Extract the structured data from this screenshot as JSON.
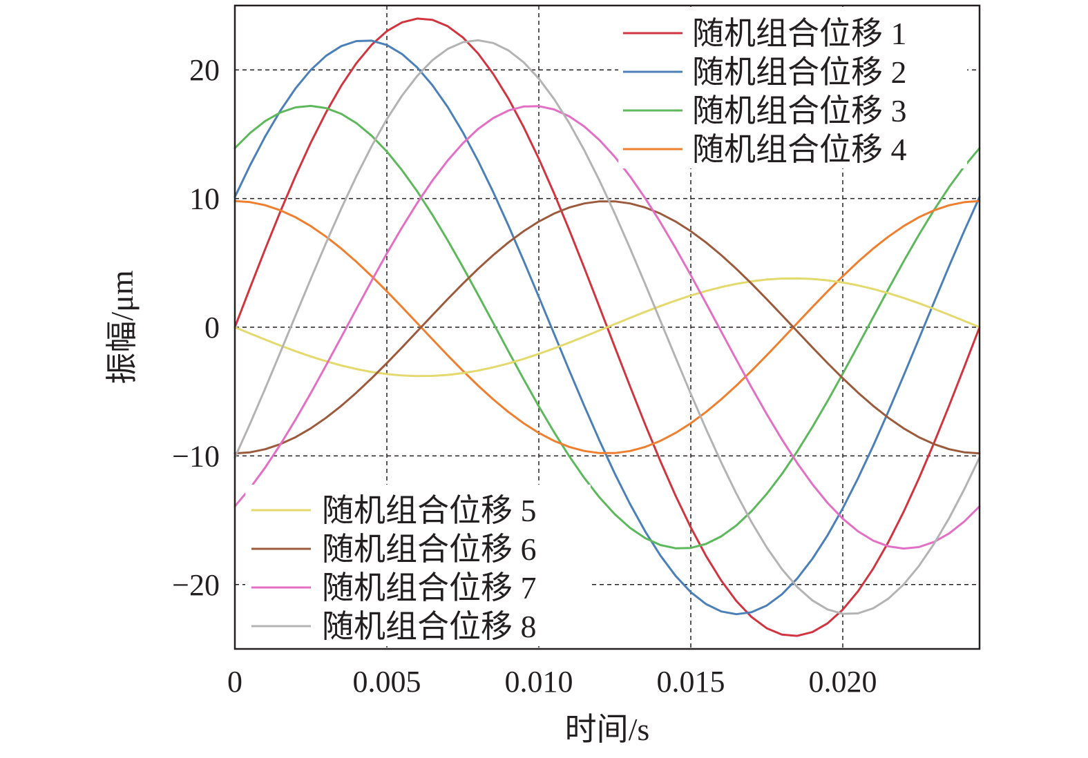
{
  "chart_data": {
    "type": "line",
    "xlabel": "时间/s",
    "ylabel": "振幅/μm",
    "xlim": [
      0,
      0.0245
    ],
    "ylim": [
      -25,
      25
    ],
    "x_ticks": [
      0,
      0.005,
      0.01,
      0.015,
      0.02
    ],
    "x_tick_labels": [
      "0",
      "0.005",
      "0.010",
      "0.015",
      "0.020"
    ],
    "y_ticks": [
      -20,
      -10,
      0,
      10,
      20
    ],
    "y_tick_labels": [
      "−20",
      "−10",
      "0",
      "10",
      "20"
    ],
    "grid": true,
    "legend": [
      {
        "placement": "top-right",
        "entries": [
          0,
          1,
          2,
          3
        ]
      },
      {
        "placement": "bottom-left",
        "entries": [
          4,
          5,
          6,
          7
        ]
      }
    ],
    "period": 0.0245,
    "sample_step": 0.0005,
    "series": [
      {
        "name": "随机组合位移 1",
        "color": "#d1343f",
        "amplitude": 24.0,
        "phase_deg": 0
      },
      {
        "name": "随机组合位移 2",
        "color": "#4a7fb8",
        "amplitude": 22.3,
        "phase_deg": 27
      },
      {
        "name": "随机组合位移 3",
        "color": "#5db85c",
        "amplitude": 17.2,
        "phase_deg": 54
      },
      {
        "name": "随机组合位移 4",
        "color": "#ef7f2e",
        "amplitude": 9.8,
        "phase_deg": 90
      },
      {
        "name": "随机组合位移 5",
        "color": "#e3d96c",
        "amplitude": 3.8,
        "phase_deg": 180
      },
      {
        "name": "随机组合位移 6",
        "color": "#9c5a3c",
        "amplitude": 9.8,
        "phase_deg": 270
      },
      {
        "name": "随机组合位移 7",
        "color": "#e36fc5",
        "amplitude": 17.2,
        "phase_deg": 306
      },
      {
        "name": "随机组合位移 8",
        "color": "#b3b3b3",
        "amplitude": 22.3,
        "phase_deg": 333
      }
    ]
  }
}
